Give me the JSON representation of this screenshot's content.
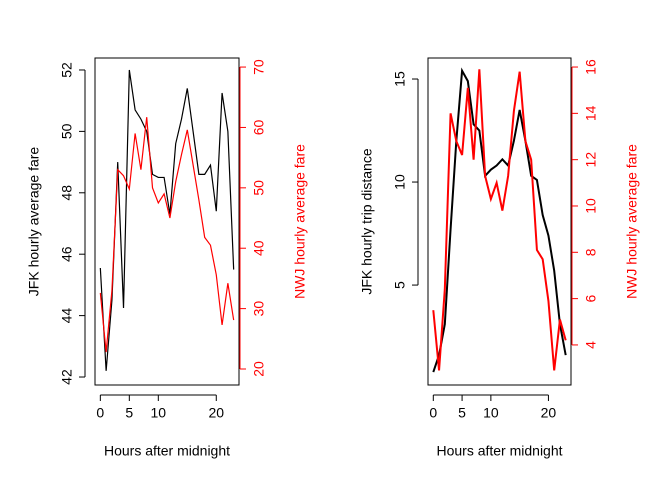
{
  "chart_data": [
    {
      "type": "line",
      "x_label": "Hours after midnight",
      "y_label": "JFK hourly average fare",
      "y2_label": "NWJ hourly average fare",
      "x": [
        0,
        1,
        2,
        3,
        4,
        5,
        6,
        7,
        8,
        9,
        10,
        11,
        12,
        13,
        14,
        15,
        16,
        17,
        18,
        19,
        20,
        21,
        22,
        23
      ],
      "series": [
        {
          "name": "JFK hourly average fare",
          "color": "#000000",
          "values": [
            45.55,
            42.2,
            44.5,
            49.0,
            44.25,
            52.0,
            50.7,
            50.4,
            50.0,
            48.6,
            48.5,
            48.5,
            47.3,
            49.6,
            50.4,
            51.4,
            50.0,
            48.6,
            48.6,
            48.9,
            47.4,
            51.25,
            50.0,
            45.5
          ]
        },
        {
          "name": "NWJ hourly average fare",
          "color": "#ff0000",
          "axis": "y2",
          "values": [
            32.6,
            22.8,
            33.0,
            53.0,
            52.0,
            49.8,
            59.0,
            53.0,
            61.7,
            50.0,
            47.5,
            49.0,
            45.0,
            51.0,
            55.5,
            59.6,
            53.8,
            48.0,
            41.8,
            40.5,
            35.6,
            27.3,
            34.2,
            28.1
          ]
        }
      ],
      "xlim": [
        -0.92,
        23.92
      ],
      "xticks": [
        0,
        5,
        10,
        20
      ],
      "ylim": [
        41.74,
        52.39
      ],
      "yticks": [
        42,
        44,
        46,
        48,
        50,
        52
      ],
      "y2lim": [
        17.35,
        71.5
      ],
      "y2ticks": [
        20,
        30,
        40,
        50,
        60,
        70
      ]
    },
    {
      "type": "line",
      "x_label": "Hours after midnight",
      "y_label": "JFK hourly trip distance",
      "y2_label": "NWJ hourly average fare",
      "x": [
        0,
        1,
        2,
        3,
        4,
        5,
        6,
        7,
        8,
        9,
        10,
        11,
        12,
        13,
        14,
        15,
        16,
        17,
        18,
        19,
        20,
        21,
        22,
        23
      ],
      "series": [
        {
          "name": "JFK hourly trip distance",
          "color": "#000000",
          "values": [
            0.78,
            1.6,
            3.1,
            7.7,
            12.0,
            15.4,
            14.9,
            12.8,
            12.5,
            10.3,
            10.6,
            10.8,
            11.1,
            10.8,
            12.0,
            13.5,
            12.0,
            10.3,
            10.1,
            8.4,
            7.4,
            5.7,
            3.1,
            1.6
          ]
        },
        {
          "name": "NWJ hourly average fare",
          "color": "#ff0000",
          "axis": "y2",
          "values": [
            5.5,
            2.9,
            6.4,
            14.0,
            12.8,
            12.2,
            15.1,
            12.0,
            15.9,
            11.3,
            10.3,
            11.0,
            9.8,
            11.3,
            14.1,
            15.8,
            12.8,
            12.0,
            8.1,
            7.7,
            5.9,
            2.9,
            5.1,
            4.2
          ]
        }
      ],
      "xlim": [
        -0.92,
        23.92
      ],
      "xticks": [
        0,
        5,
        10,
        20
      ],
      "ylim": [
        0.15,
        16.02
      ],
      "yticks": [
        5,
        10,
        15
      ],
      "y2lim": [
        2.27,
        16.39
      ],
      "y2ticks": [
        4,
        6,
        8,
        10,
        12,
        14,
        16
      ]
    }
  ]
}
